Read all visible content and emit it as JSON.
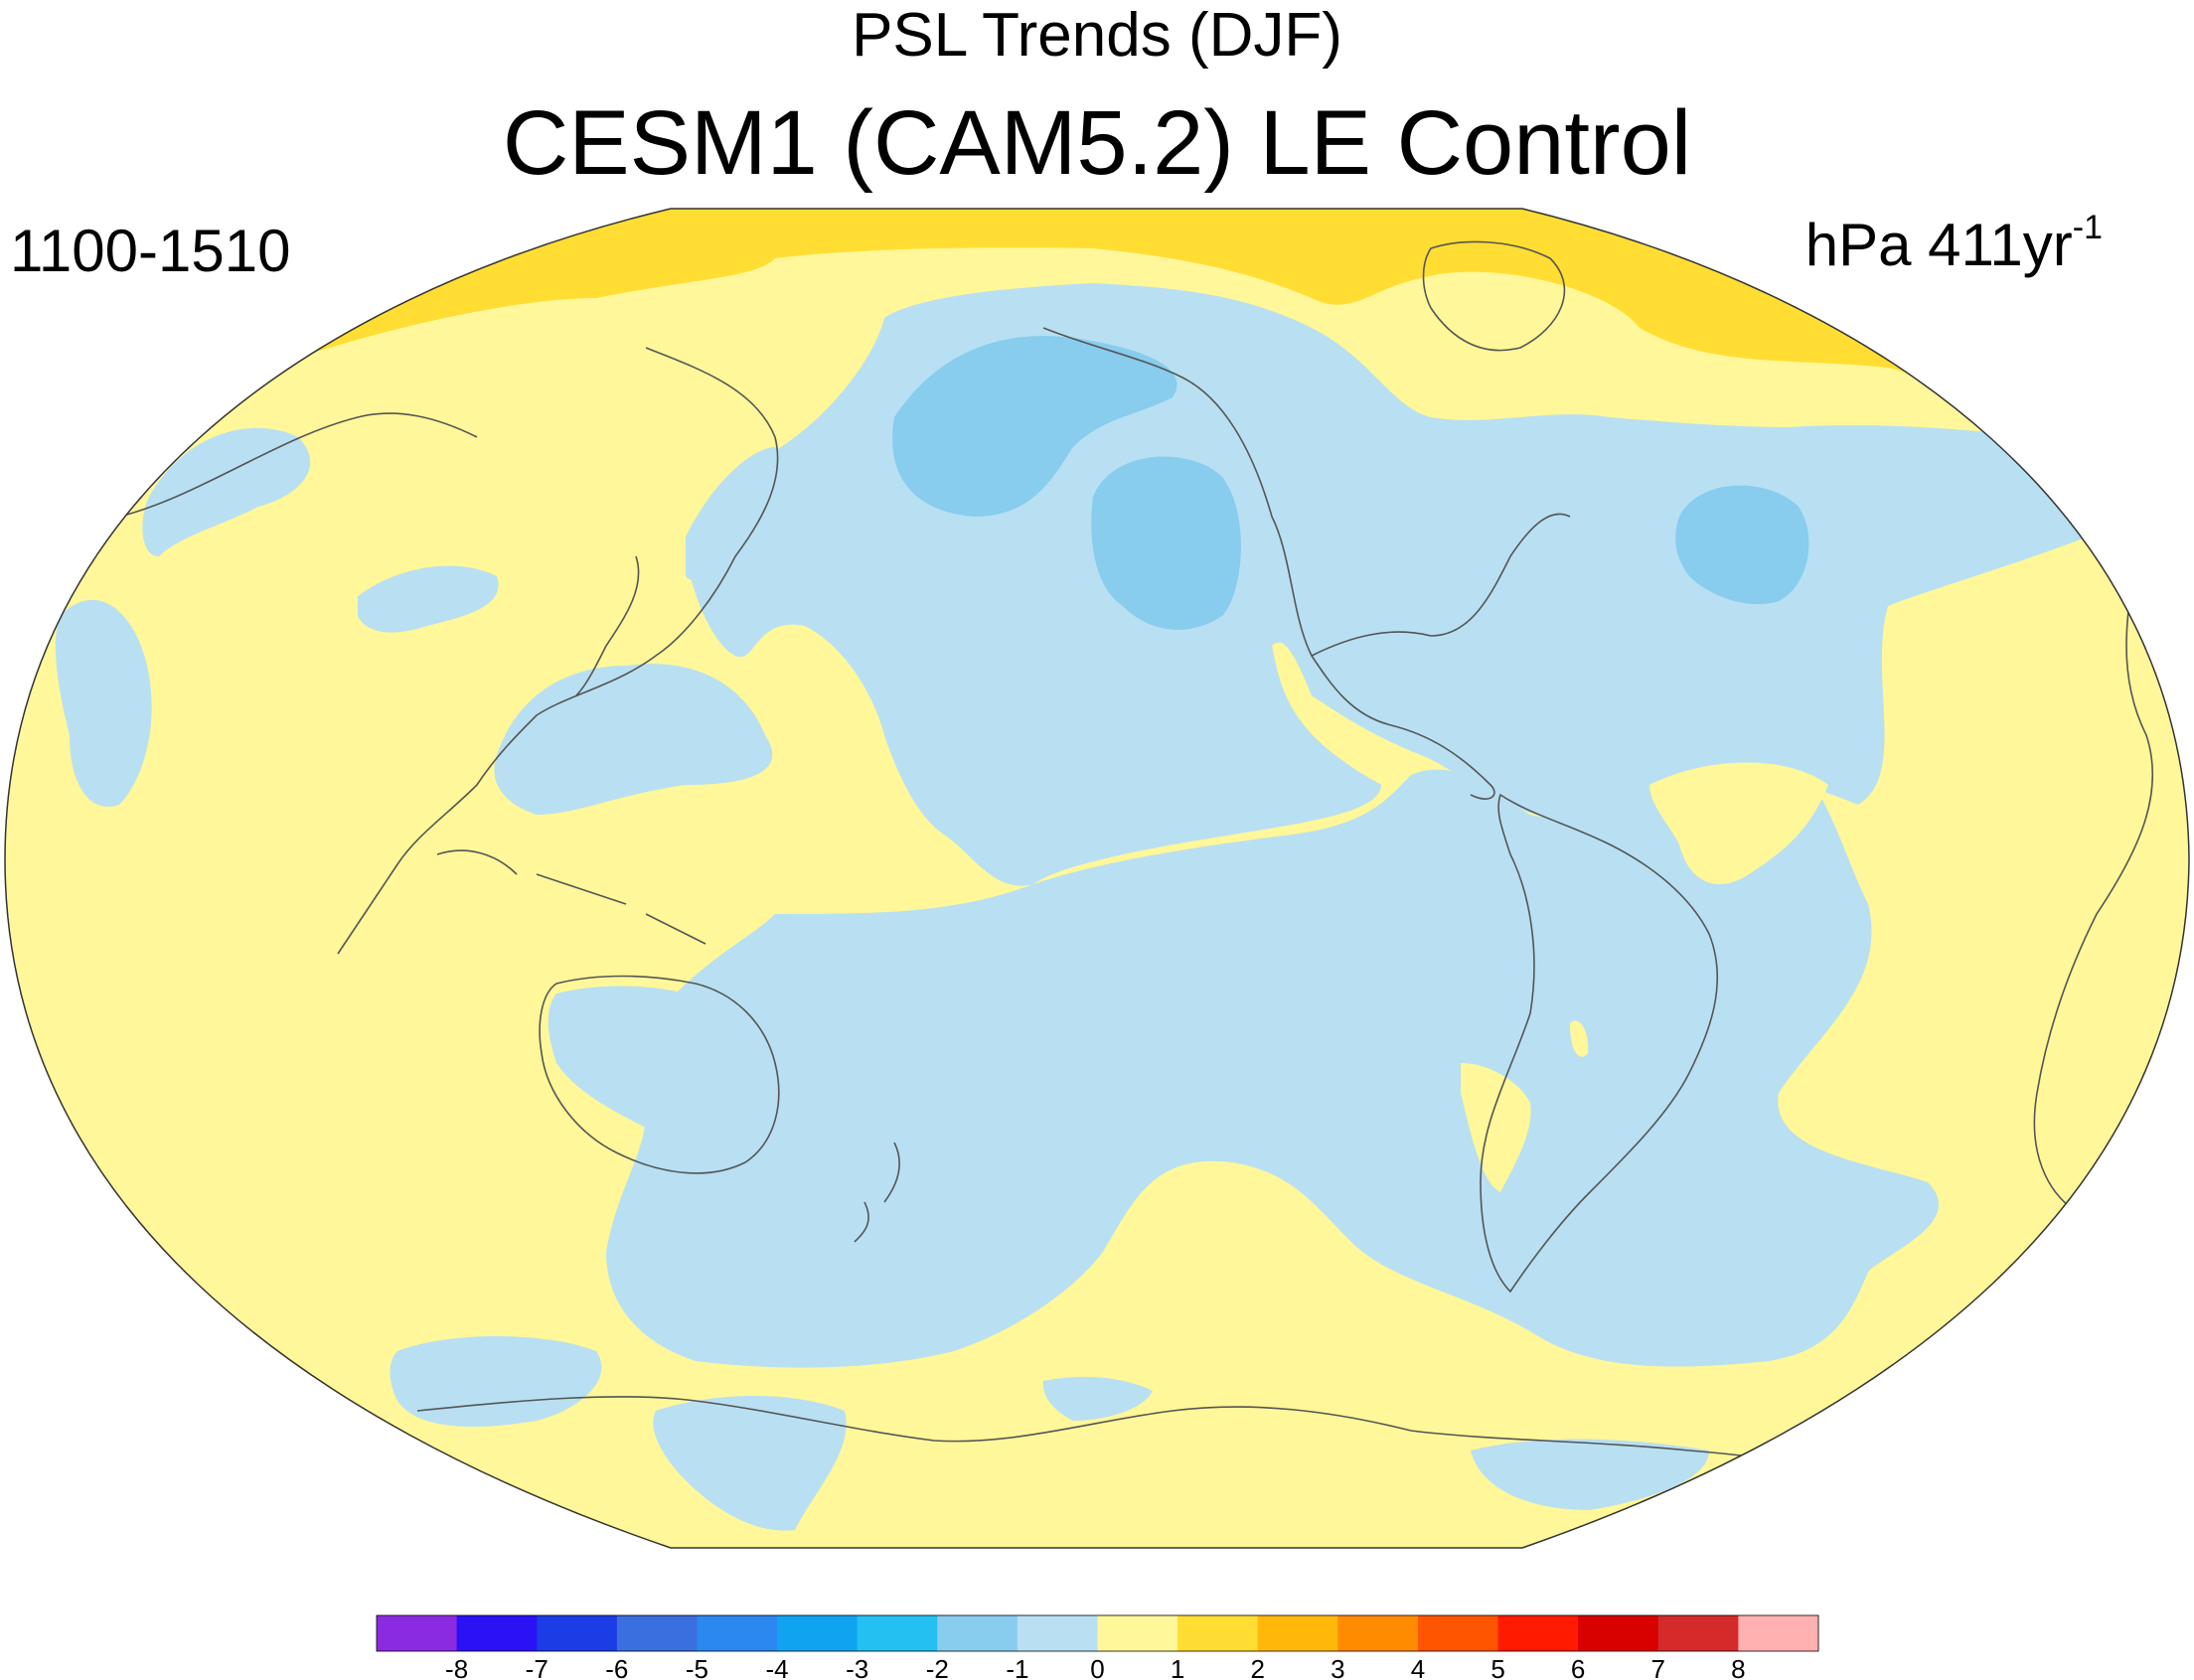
{
  "title": "PSL Trends (DJF)",
  "subtitle": "CESM1 (CAM5.2) LE Control",
  "left_label": "1100-1510",
  "right_label": {
    "text": "hPa 411yr",
    "superscript": "-1"
  },
  "colorbar": {
    "labels": [
      "-8",
      "-7",
      "-6",
      "-5",
      "-4",
      "-3",
      "-2",
      "-1",
      "0",
      "1",
      "2",
      "3",
      "4",
      "5",
      "6",
      "7",
      "8"
    ],
    "colors": [
      "#8a2be2",
      "#2a12f5",
      "#1c3ce6",
      "#3a6fe0",
      "#2a88f0",
      "#10a4f0",
      "#25c0f2",
      "#88ccee",
      "#b8e0f2",
      "#fff799",
      "#ffdd33",
      "#ffb80a",
      "#ff8c00",
      "#ff5500",
      "#ff1a00",
      "#d90000",
      "#d42a2a",
      "#ffb0b0"
    ]
  },
  "map_colors": {
    "positive_0_1": "#fff799",
    "positive_1_2": "#ffdd33",
    "negative_0_1": "#b8e0f2",
    "negative_1_2": "#88ccee",
    "coast": "#555555",
    "border": "#333333"
  }
}
